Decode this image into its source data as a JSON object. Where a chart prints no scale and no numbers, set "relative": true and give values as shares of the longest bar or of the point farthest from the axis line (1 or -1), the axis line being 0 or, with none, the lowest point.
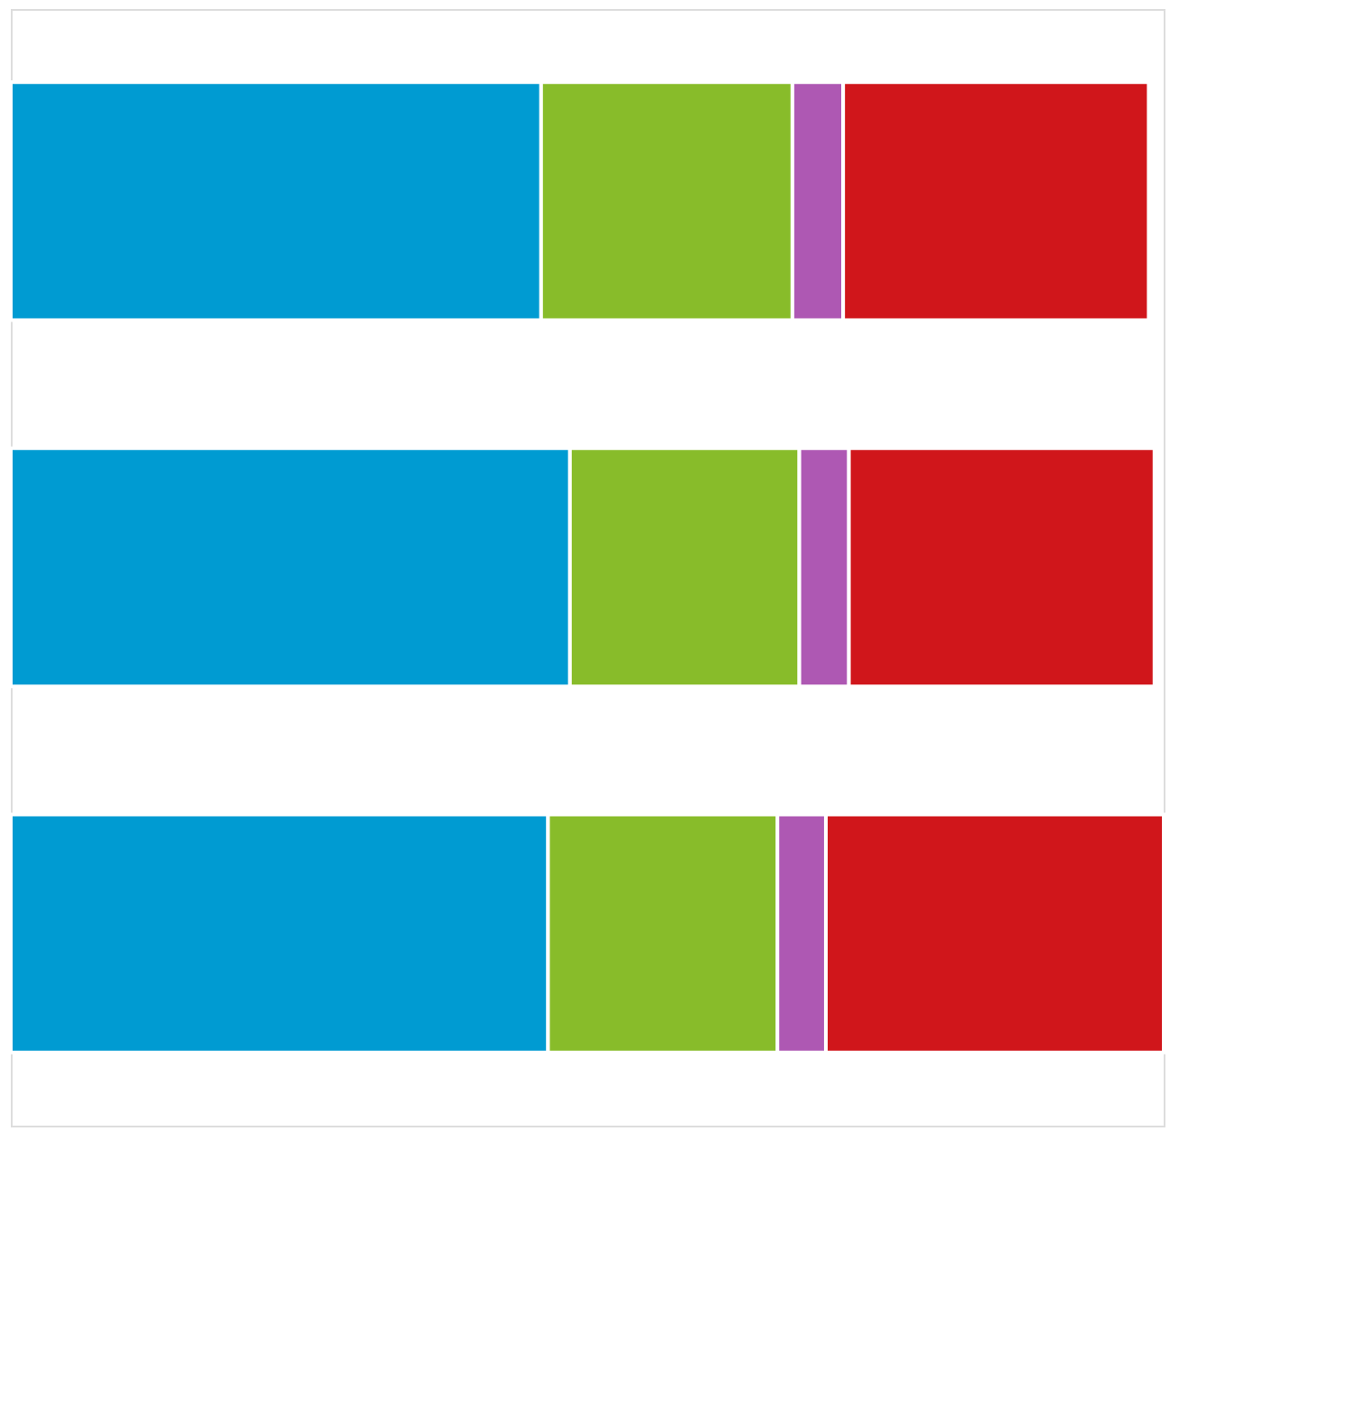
{
  "chart_data": {
    "type": "bar",
    "orientation": "horizontal",
    "stacked": true,
    "relative": true,
    "categories": [
      null,
      null,
      null
    ],
    "series": [
      {
        "color": "#009bd2",
        "values": [
          0.46,
          0.485,
          0.466
        ]
      },
      {
        "color": "#88bc2a",
        "values": [
          0.218,
          0.199,
          0.199
        ]
      },
      {
        "color": "#ae58b3",
        "values": [
          0.044,
          0.043,
          0.042
        ]
      },
      {
        "color": "#d0161b",
        "values": [
          0.265,
          0.265,
          0.293
        ]
      }
    ]
  }
}
